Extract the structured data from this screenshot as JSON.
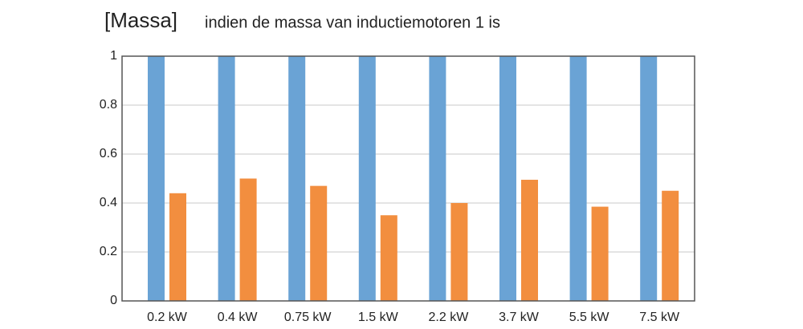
{
  "chart_data": {
    "type": "bar",
    "title": "[Massa]",
    "subtitle": "indien de massa van inductiemotoren 1 is",
    "categories": [
      "0.2 kW",
      "0.4 kW",
      "0.75 kW",
      "1.5 kW",
      "2.2 kW",
      "3.7 kW",
      "5.5 kW",
      "7.5 kW"
    ],
    "series": [
      {
        "color": "#6aa3d5",
        "values": [
          1,
          1,
          1,
          1,
          1,
          1,
          1,
          1
        ]
      },
      {
        "color": "#f28e3f",
        "values": [
          0.44,
          0.5,
          0.47,
          0.35,
          0.4,
          0.495,
          0.385,
          0.45
        ]
      }
    ],
    "ylim": [
      0,
      1
    ],
    "yticks": [
      0,
      0.2,
      0.4,
      0.6,
      0.8,
      1
    ],
    "grid": true
  }
}
